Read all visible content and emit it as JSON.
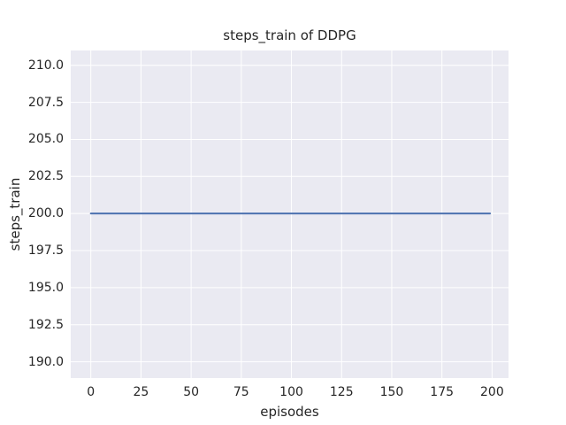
{
  "chart_data": {
    "type": "line",
    "title": "steps_train of DDPG",
    "xlabel": "episodes",
    "ylabel": "steps_train",
    "x_ticks": [
      0,
      25,
      50,
      75,
      100,
      125,
      150,
      175,
      200
    ],
    "x_tick_labels": [
      "0",
      "25",
      "50",
      "75",
      "100",
      "125",
      "150",
      "175",
      "200"
    ],
    "y_ticks": [
      190.0,
      192.5,
      195.0,
      197.5,
      200.0,
      202.5,
      205.0,
      207.5,
      210.0
    ],
    "y_tick_labels": [
      "190.0",
      "192.5",
      "195.0",
      "197.5",
      "200.0",
      "202.5",
      "205.0",
      "207.5",
      "210.0"
    ],
    "xlim": [
      -10.0,
      208.2
    ],
    "ylim": [
      188.9,
      211.0
    ],
    "grid": true,
    "legend": false,
    "series": [
      {
        "name": "steps_train",
        "color": "#4c72b0",
        "x": [
          0,
          199
        ],
        "y": [
          200,
          200
        ],
        "constant_value": 200
      }
    ],
    "style": {
      "figure_bg": "#ffffff",
      "plot_bg": "#eaeaf2",
      "grid_color": "#ffffff",
      "text_color": "#262626",
      "line_width": 2
    }
  }
}
